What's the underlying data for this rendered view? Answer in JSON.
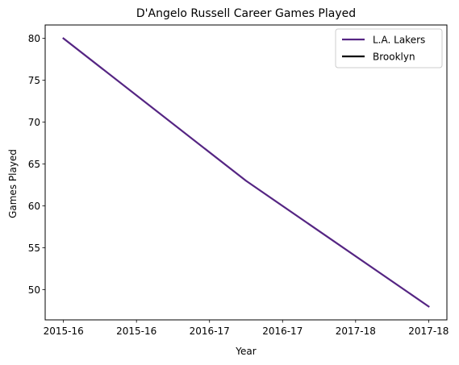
{
  "chart_data": {
    "type": "line",
    "title": "D'Angelo Russell Career Games Played",
    "xlabel": "Year",
    "ylabel": "Games Played",
    "x_ticks": [
      "2015-16",
      "2015-16",
      "2016-17",
      "2016-17",
      "2017-18",
      "2017-18"
    ],
    "y_ticks": [
      50,
      55,
      60,
      65,
      70,
      75,
      80
    ],
    "xlim": [
      -0.25,
      5.25
    ],
    "ylim": [
      46.4,
      81.6
    ],
    "grid": false,
    "legend_position": "top-right",
    "series": [
      {
        "name": "L.A. Lakers",
        "color": "#552583",
        "points": [
          [
            0,
            80
          ],
          [
            2.5,
            63
          ],
          [
            5,
            48
          ]
        ]
      },
      {
        "name": "Brooklyn",
        "color": "#000000",
        "points": []
      }
    ]
  }
}
